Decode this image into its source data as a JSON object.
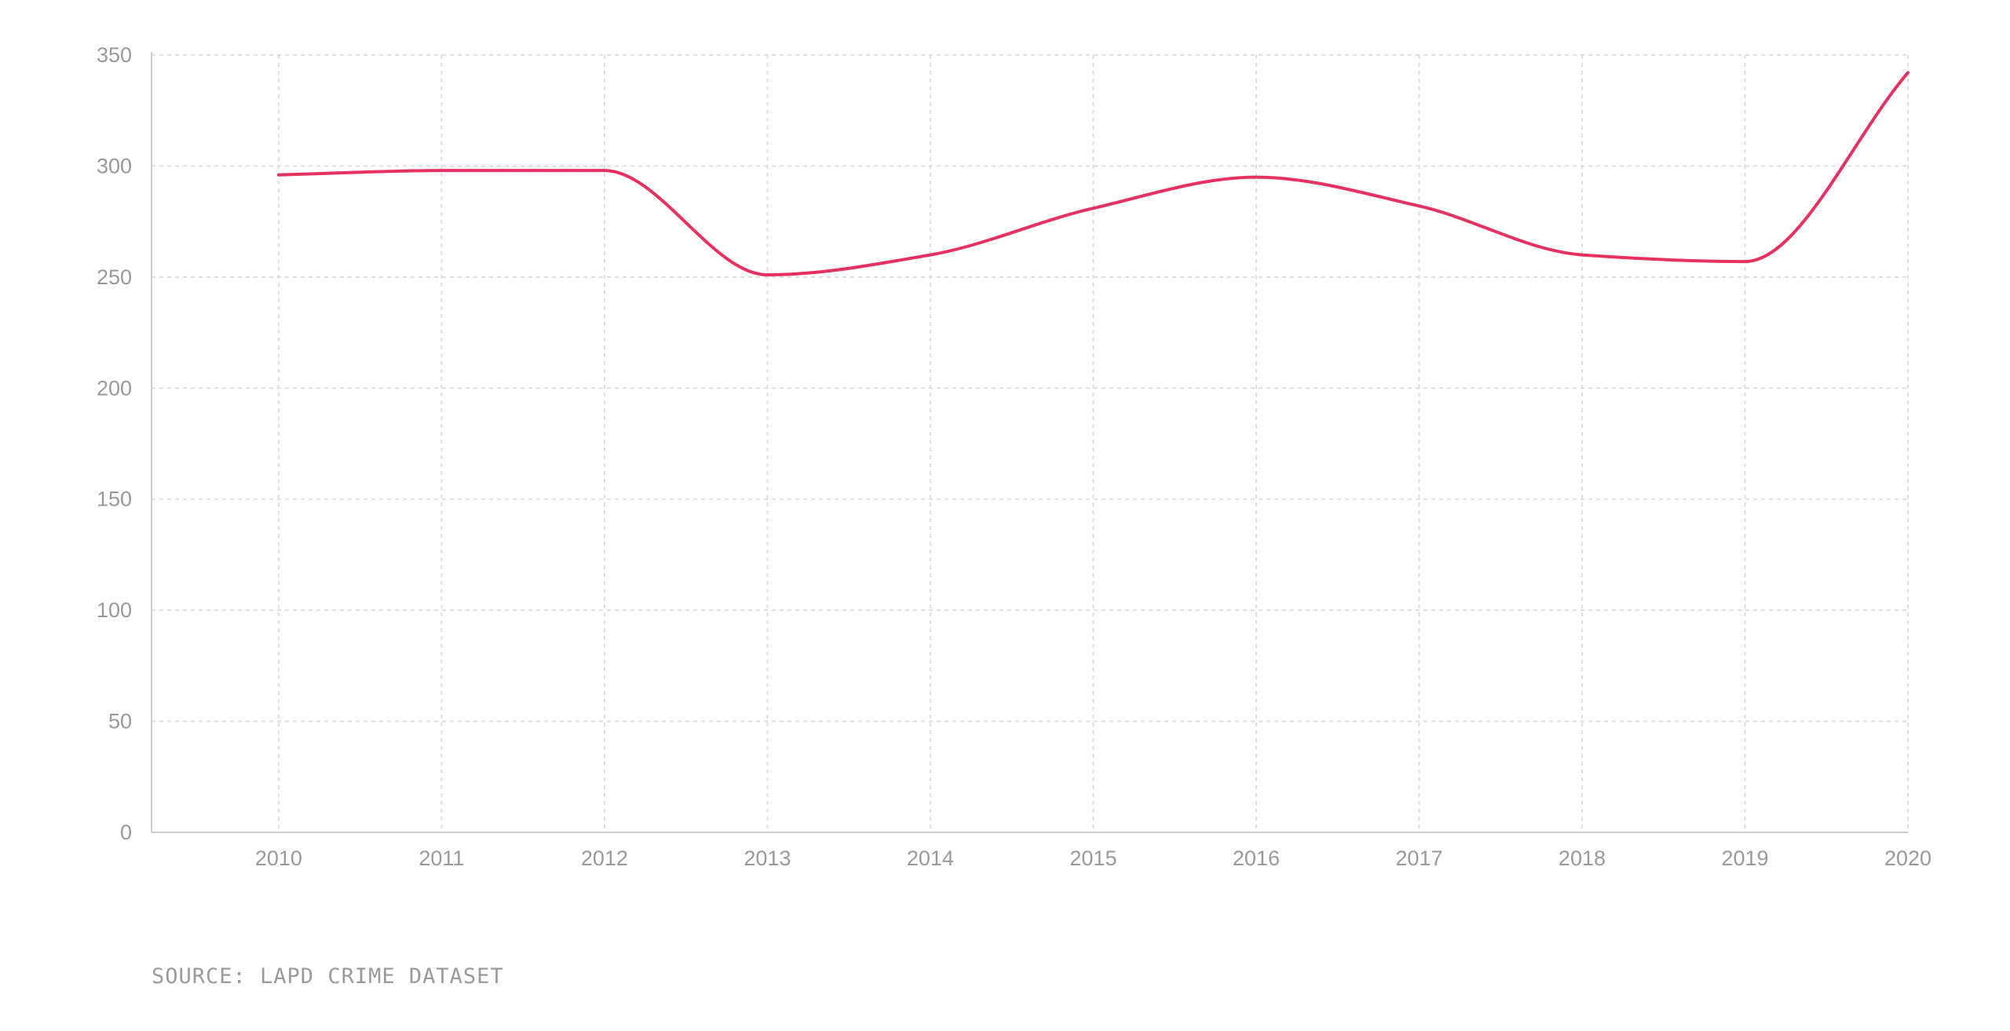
{
  "chart_data": {
    "type": "line",
    "title": "",
    "xlabel": "",
    "ylabel": "",
    "x": [
      2010,
      2011,
      2012,
      2013,
      2014,
      2015,
      2016,
      2017,
      2018,
      2019,
      2020
    ],
    "x_tick_labels": [
      "2010",
      "2011",
      "2012",
      "2013",
      "2014",
      "2015",
      "2016",
      "2017",
      "2018",
      "2019",
      "2020"
    ],
    "y_ticks": [
      0,
      50,
      100,
      150,
      200,
      250,
      300,
      350
    ],
    "y_tick_labels": [
      "0",
      "50",
      "100",
      "150",
      "200",
      "250",
      "300",
      "350"
    ],
    "xlim": [
      2009.22,
      2020
    ],
    "ylim": [
      0,
      350
    ],
    "grid": true,
    "legend": "none",
    "series": [
      {
        "values": [
          296,
          298,
          298,
          251,
          260,
          281,
          295,
          282,
          260,
          257,
          342
        ]
      }
    ],
    "colors": {
      "line": "#e5315f",
      "grid": "#dddddd",
      "axis": "#cccccc",
      "tick_text": "#999999"
    }
  },
  "source_note": "SOURCE: LAPD CRIME DATASET"
}
